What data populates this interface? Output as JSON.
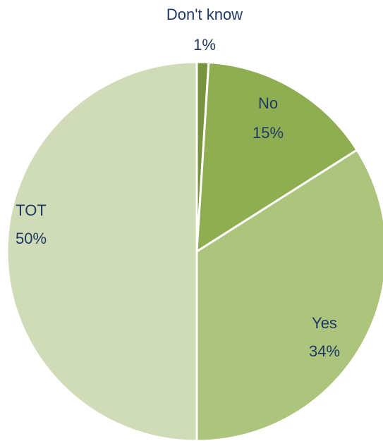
{
  "chart_data": {
    "type": "pie",
    "categories": [
      "Don't know",
      "No",
      "Yes",
      "TOT"
    ],
    "values": [
      1,
      15,
      34,
      50
    ],
    "value_labels": [
      "1%",
      "15%",
      "34%",
      "50%"
    ],
    "colors": [
      "#77933c",
      "#8fae52",
      "#adc47d",
      "#d0dcb8"
    ]
  }
}
